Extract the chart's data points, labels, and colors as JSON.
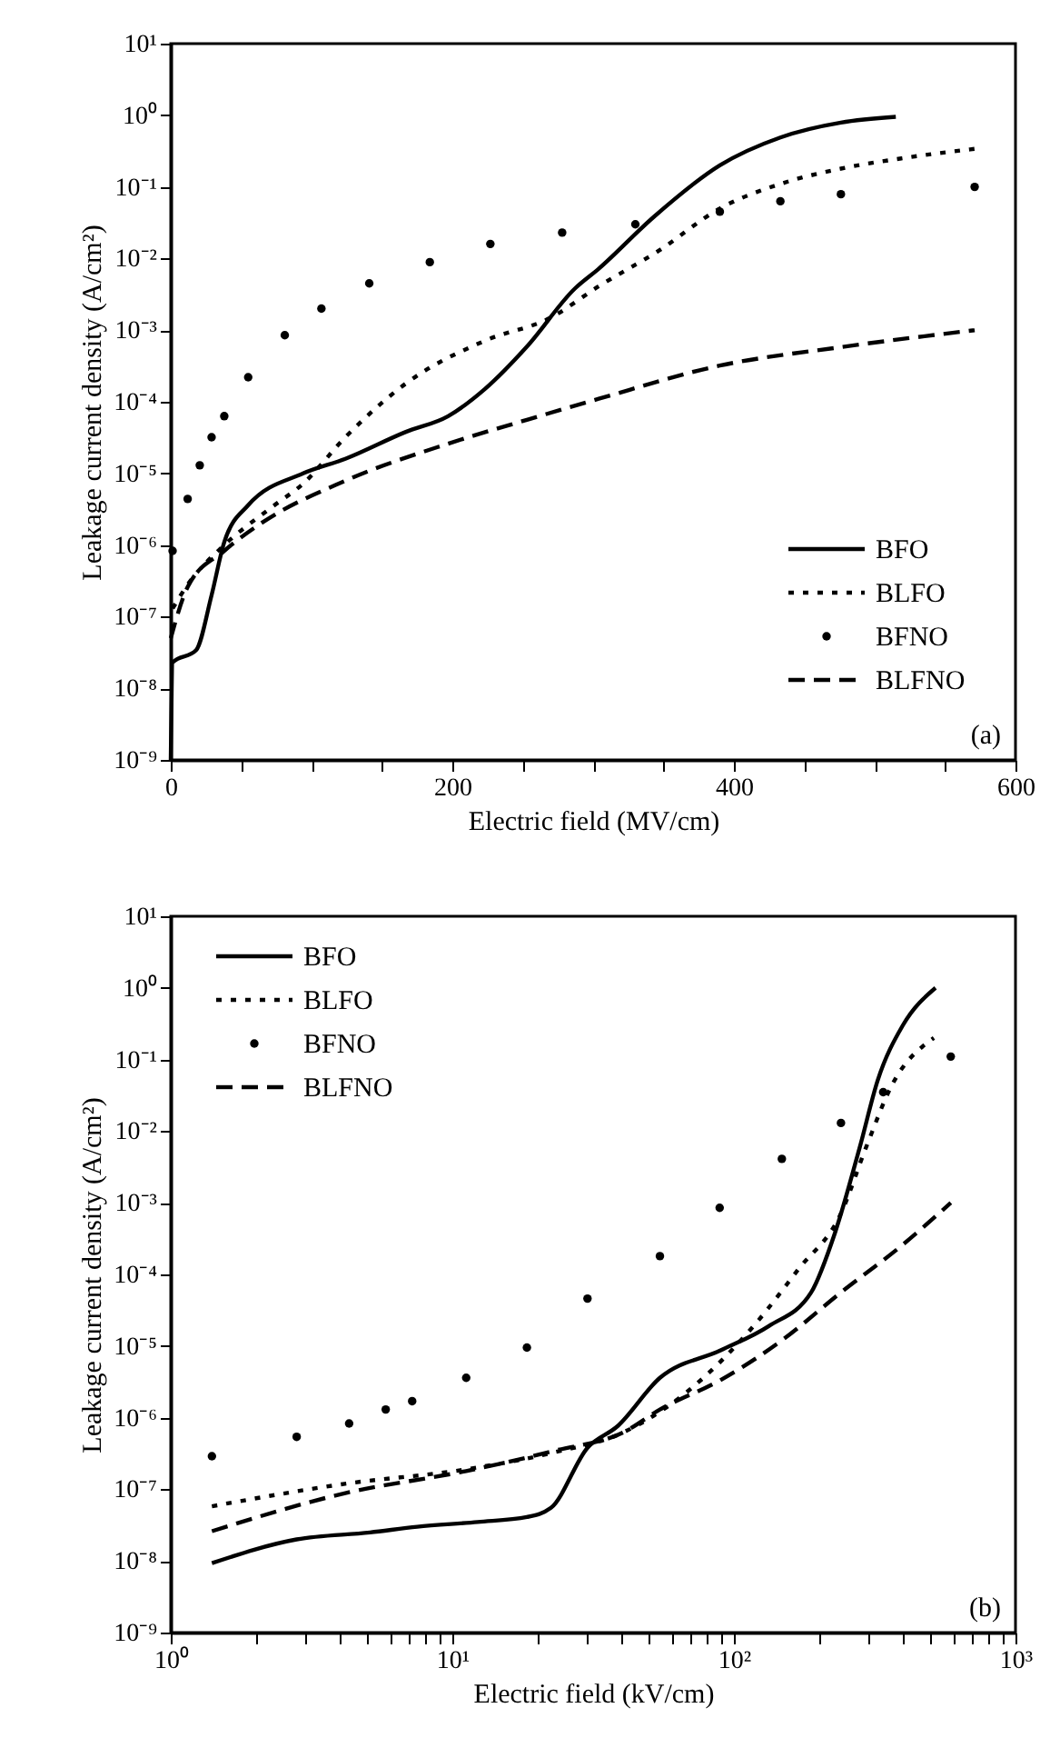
{
  "chart_data": [
    {
      "type": "line",
      "xlabel": "Electric field (MV/cm)",
      "ylabel": "Leakage current density (A/cm²)",
      "log": "y",
      "legend": "bottom right",
      "annotations": [
        "(a)"
      ],
      "xlim": [
        0,
        600
      ],
      "ylim": [
        1e-09,
        10
      ],
      "xticks": [
        0,
        {
          "value": 50,
          "label": null
        },
        {
          "value": 100,
          "label": null
        },
        {
          "value": 150,
          "label": null
        },
        200,
        {
          "value": 250,
          "label": null
        },
        {
          "value": 300,
          "label": null
        },
        {
          "value": 350,
          "label": null
        },
        400,
        {
          "value": 450,
          "label": null
        },
        {
          "value": 500,
          "label": null
        },
        {
          "value": 550,
          "label": null
        },
        600
      ],
      "yticks": [
        {
          "value": 1e-09,
          "label": "10⁻⁹"
        },
        {
          "value": 1e-08,
          "label": "10⁻⁸"
        },
        {
          "value": 1e-07,
          "label": "10⁻⁷"
        },
        {
          "value": 1e-06,
          "label": "10⁻⁶"
        },
        {
          "value": 1e-05,
          "label": "10⁻⁵"
        },
        {
          "value": 0.0001,
          "label": "10⁻⁴"
        },
        {
          "value": 0.001,
          "label": "10⁻³"
        },
        {
          "value": 0.01,
          "label": "10⁻²"
        },
        {
          "value": 0.1,
          "label": "10⁻¹"
        },
        {
          "value": 1,
          "label": "10⁰"
        },
        {
          "value": 10,
          "label": "10¹"
        }
      ],
      "series": [
        {
          "name": "BFO",
          "color": "#000000",
          "line_style": "solid",
          "x": [
            0,
            1.3,
            18,
            29,
            38,
            55,
            94,
            124,
            167,
            197,
            223,
            253,
            287,
            304,
            343,
            390,
            433,
            476,
            515
          ],
          "values": [
            1e-09,
            2.3e-08,
            3.4e-08,
            2e-07,
            1.1e-06,
            3.6e-06,
            1e-05,
            1.6e-05,
            3.8e-05,
            6.3e-05,
            0.00015,
            0.00059,
            0.0038,
            0.0072,
            0.038,
            0.2,
            0.49,
            0.79,
            0.95
          ]
        },
        {
          "name": "BLFO",
          "color": "#000000",
          "line_style": "dotted",
          "x": [
            1.3,
            12,
            38,
            72,
            94,
            124,
            167,
            223,
            270,
            304,
            347,
            390,
            433,
            476,
            519,
            571
          ],
          "values": [
            1.3e-07,
            2.8e-07,
            1e-06,
            3.4e-06,
            7.2e-06,
            3.2e-05,
            0.00018,
            0.00071,
            0.0015,
            0.0041,
            0.013,
            0.05,
            0.11,
            0.18,
            0.25,
            0.34
          ]
        },
        {
          "name": "BFNO",
          "color": "#000000",
          "type": "scatter",
          "marker": "circle",
          "x": [
            1.3,
            12,
            20.6,
            29,
            38,
            55,
            81,
            107,
            141,
            184,
            227,
            278,
            330,
            390,
            433,
            476,
            571
          ],
          "values": [
            8.3e-07,
            4.4e-06,
            1.3e-05,
            3.2e-05,
            6.3e-05,
            0.00022,
            0.00085,
            0.002,
            0.0045,
            0.0089,
            0.016,
            0.023,
            0.03,
            0.045,
            0.063,
            0.079,
            0.1
          ]
        },
        {
          "name": "BLFNO",
          "color": "#000000",
          "line_style": "dashed",
          "x": [
            0,
            12,
            38,
            64,
            124,
            197,
            253,
            304,
            390,
            476,
            571
          ],
          "values": [
            5e-08,
            2.6e-07,
            8.3e-07,
            2e-06,
            7.9e-06,
            2.6e-05,
            5.6e-05,
            0.00011,
            0.00032,
            0.00058,
            0.001
          ]
        }
      ]
    },
    {
      "type": "line",
      "xlabel": "Electric field (kV/cm)",
      "ylabel": "Leakage current density (A/cm²)",
      "log": "xy",
      "legend": "top left",
      "annotations": [
        "(b)"
      ],
      "xlim": [
        1,
        1000
      ],
      "ylim": [
        1e-09,
        10
      ],
      "xticks": [
        {
          "value": 1,
          "label": "10⁰"
        },
        {
          "value": 2,
          "label": null
        },
        {
          "value": 3,
          "label": null
        },
        {
          "value": 4,
          "label": null
        },
        {
          "value": 5,
          "label": null
        },
        {
          "value": 6,
          "label": null
        },
        {
          "value": 7,
          "label": null
        },
        {
          "value": 8,
          "label": null
        },
        {
          "value": 9,
          "label": null
        },
        {
          "value": 10,
          "label": "10¹"
        },
        {
          "value": 20,
          "label": null
        },
        {
          "value": 30,
          "label": null
        },
        {
          "value": 40,
          "label": null
        },
        {
          "value": 50,
          "label": null
        },
        {
          "value": 60,
          "label": null
        },
        {
          "value": 70,
          "label": null
        },
        {
          "value": 80,
          "label": null
        },
        {
          "value": 90,
          "label": null
        },
        {
          "value": 100,
          "label": "10²"
        },
        {
          "value": 200,
          "label": null
        },
        {
          "value": 300,
          "label": null
        },
        {
          "value": 400,
          "label": null
        },
        {
          "value": 500,
          "label": null
        },
        {
          "value": 600,
          "label": null
        },
        {
          "value": 700,
          "label": null
        },
        {
          "value": 800,
          "label": null
        },
        {
          "value": 900,
          "label": null
        },
        {
          "value": 1000,
          "label": "10³"
        }
      ],
      "yticks": [
        {
          "value": 1e-09,
          "label": "10⁻⁹"
        },
        {
          "value": 1e-08,
          "label": "10⁻⁸"
        },
        {
          "value": 1e-07,
          "label": "10⁻⁷"
        },
        {
          "value": 1e-06,
          "label": "10⁻⁶"
        },
        {
          "value": 1e-05,
          "label": "10⁻⁵"
        },
        {
          "value": 0.0001,
          "label": "10⁻⁴"
        },
        {
          "value": 0.001,
          "label": "10⁻³"
        },
        {
          "value": 0.01,
          "label": "10⁻²"
        },
        {
          "value": 0.1,
          "label": "10⁻¹"
        },
        {
          "value": 1,
          "label": "10⁰"
        },
        {
          "value": 10,
          "label": "10¹"
        }
      ],
      "series": [
        {
          "name": "BFO",
          "color": "#000000",
          "line_style": "solid",
          "x": [
            1.4,
            2.8,
            5.1,
            7.5,
            12.3,
            18.4,
            22.4,
            30.2,
            38.6,
            54.6,
            89.7,
            133,
            188,
            229,
            280,
            324,
            398,
            520
          ],
          "values": [
            9.3e-09,
            2e-08,
            2.5e-08,
            3e-08,
            3.5e-08,
            4.1e-08,
            5.5e-08,
            3.8e-07,
            7.6e-07,
            3.6e-06,
            8.7e-06,
            1.9e-05,
            5.6e-05,
            0.00039,
            0.006,
            0.051,
            0.3,
            1.0
          ]
        },
        {
          "name": "BLFO",
          "color": "#000000",
          "line_style": "dotted",
          "x": [
            1.4,
            4.2,
            11.2,
            22.4,
            40.7,
            70,
            120,
            170,
            240,
            295,
            363,
            513
          ],
          "values": [
            5.8e-08,
            1.2e-07,
            1.9e-07,
            3.2e-07,
            6.3e-07,
            2.5e-06,
            2.1e-05,
            0.00012,
            0.00071,
            0.006,
            0.043,
            0.2
          ]
        },
        {
          "name": "BFNO",
          "color": "#000000",
          "type": "scatter",
          "marker": "circle",
          "x": [
            1.4,
            2.8,
            4.3,
            5.8,
            7.2,
            11.2,
            18.4,
            30.2,
            54.6,
            89,
            148,
            240,
            339,
            589
          ],
          "values": [
            2.9e-07,
            5.4e-07,
            8.3e-07,
            1.3e-06,
            1.7e-06,
            3.6e-06,
            9.5e-06,
            4.6e-05,
            0.00018,
            0.00085,
            0.0041,
            0.013,
            0.035,
            0.11
          ]
        },
        {
          "name": "BLFNO",
          "color": "#000000",
          "line_style": "dashed",
          "x": [
            1.4,
            4.2,
            11.2,
            23.4,
            40.7,
            54.6,
            89,
            148,
            240,
            398,
            589
          ],
          "values": [
            2.6e-08,
            8.9e-08,
            1.8e-07,
            3.5e-07,
            6.3e-07,
            1.3e-06,
            3.3e-06,
            1.2e-05,
            5.6e-05,
            0.00026,
            0.001
          ]
        }
      ]
    }
  ]
}
